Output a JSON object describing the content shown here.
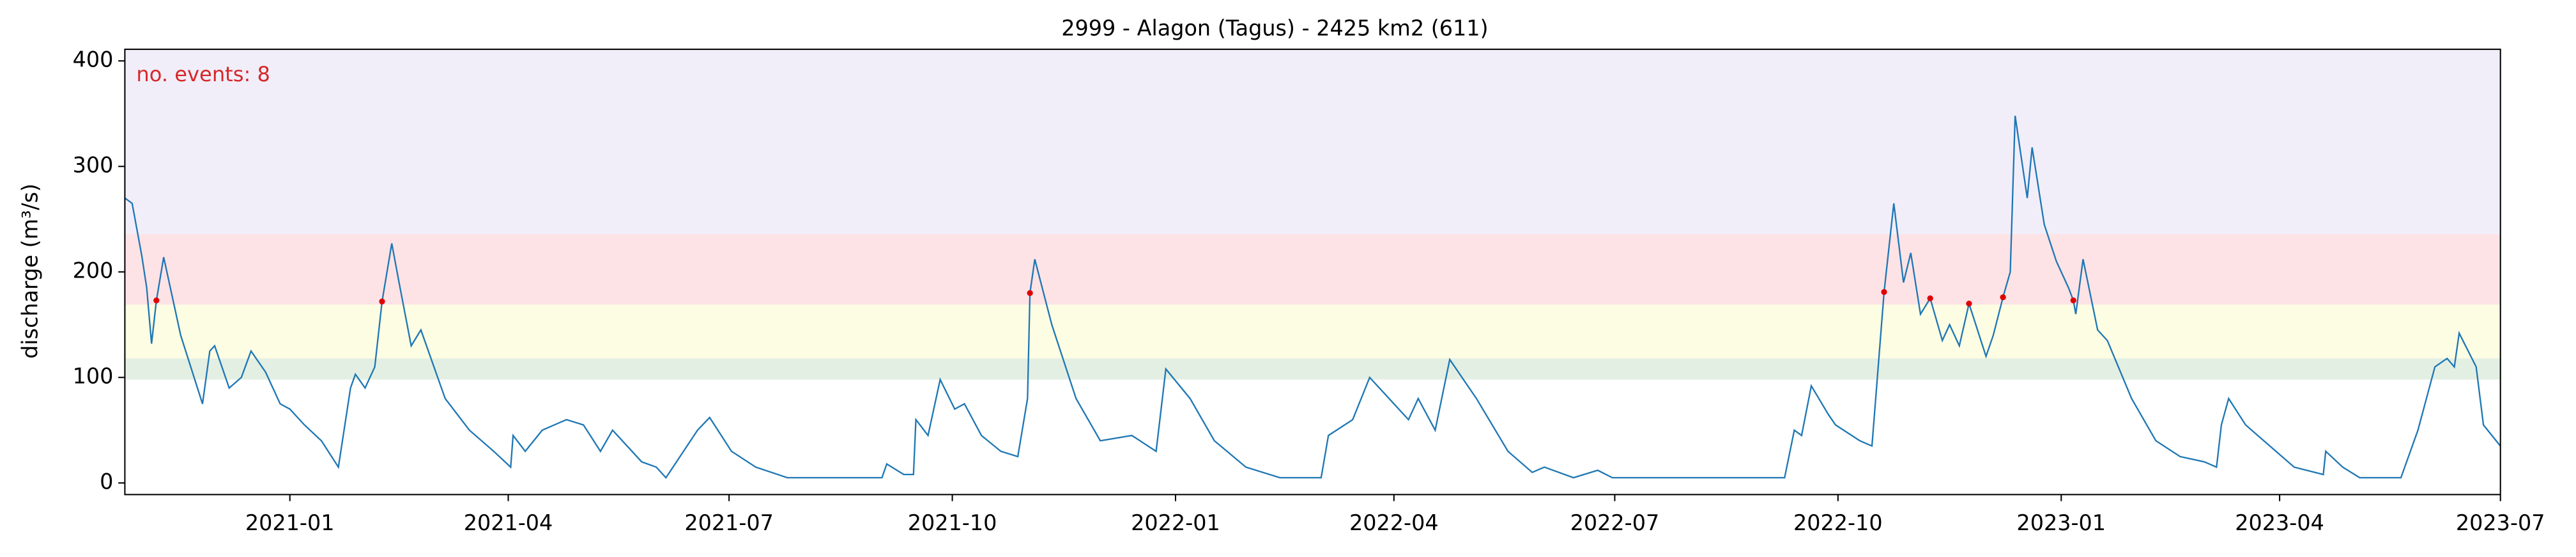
{
  "chart_data": {
    "type": "line",
    "title": "2999 - Alagon (Tagus) - 2425 km2 (611)",
    "ylabel": "discharge (m³/s)",
    "annotation": "no. events: 8",
    "annotation_color": "#d62728",
    "xlim": [
      "2020-10-25",
      "2023-07-01"
    ],
    "xticks": [
      "2021-01",
      "2021-04",
      "2021-07",
      "2021-10",
      "2022-01",
      "2022-04",
      "2022-07",
      "2022-10",
      "2023-01",
      "2023-04",
      "2023-07"
    ],
    "ylim": [
      -11,
      411
    ],
    "yticks": [
      0,
      100,
      200,
      300,
      400
    ],
    "bands": [
      {
        "from": 98,
        "to": 118,
        "color": "#e3efe3"
      },
      {
        "from": 118,
        "to": 169,
        "color": "#fdfde3"
      },
      {
        "from": 169,
        "to": 236,
        "color": "#fde3e6"
      },
      {
        "from": 236,
        "to": 411,
        "color": "#f1eefa"
      }
    ],
    "x": [
      "2020-10-25",
      "2020-10-28",
      "2020-11-01",
      "2020-11-03",
      "2020-11-05",
      "2020-11-07",
      "2020-11-10",
      "2020-11-17",
      "2020-11-26",
      "2020-11-29",
      "2020-12-01",
      "2020-12-07",
      "2020-12-12",
      "2020-12-16",
      "2020-12-22",
      "2020-12-28",
      "2021-01-01",
      "2021-01-07",
      "2021-01-14",
      "2021-01-21",
      "2021-01-26",
      "2021-01-28",
      "2021-02-01",
      "2021-02-05",
      "2021-02-08",
      "2021-02-12",
      "2021-02-15",
      "2021-02-20",
      "2021-02-24",
      "2021-03-06",
      "2021-03-16",
      "2021-03-26",
      "2021-04-02",
      "2021-04-03",
      "2021-04-08",
      "2021-04-15",
      "2021-04-25",
      "2021-05-02",
      "2021-05-09",
      "2021-05-14",
      "2021-05-26",
      "2021-06-01",
      "2021-06-05",
      "2021-06-18",
      "2021-06-23",
      "2021-07-02",
      "2021-07-12",
      "2021-07-25",
      "2021-09-02",
      "2021-09-04",
      "2021-09-11",
      "2021-09-15",
      "2021-09-16",
      "2021-09-21",
      "2021-09-26",
      "2021-10-02",
      "2021-10-06",
      "2021-10-13",
      "2021-10-21",
      "2021-10-28",
      "2021-11-01",
      "2021-11-02",
      "2021-11-04",
      "2021-11-11",
      "2021-11-21",
      "2021-12-01",
      "2021-12-14",
      "2021-12-24",
      "2021-12-28",
      "2022-01-07",
      "2022-01-17",
      "2022-01-30",
      "2022-02-13",
      "2022-03-02",
      "2022-03-05",
      "2022-03-15",
      "2022-03-22",
      "2022-03-30",
      "2022-04-07",
      "2022-04-11",
      "2022-04-18",
      "2022-04-24",
      "2022-05-05",
      "2022-05-18",
      "2022-05-28",
      "2022-06-02",
      "2022-06-14",
      "2022-06-24",
      "2022-06-30",
      "2022-09-09",
      "2022-09-13",
      "2022-09-16",
      "2022-09-20",
      "2022-09-27",
      "2022-09-30",
      "2022-10-10",
      "2022-10-15",
      "2022-10-20",
      "2022-10-24",
      "2022-10-28",
      "2022-10-31",
      "2022-11-04",
      "2022-11-08",
      "2022-11-13",
      "2022-11-16",
      "2022-11-20",
      "2022-11-24",
      "2022-12-01",
      "2022-12-04",
      "2022-12-08",
      "2022-12-11",
      "2022-12-13",
      "2022-12-18",
      "2022-12-20",
      "2022-12-25",
      "2022-12-30",
      "2023-01-04",
      "2023-01-06",
      "2023-01-07",
      "2023-01-10",
      "2023-01-16",
      "2023-01-20",
      "2023-01-30",
      "2023-02-09",
      "2023-02-19",
      "2023-03-01",
      "2023-03-06",
      "2023-03-08",
      "2023-03-11",
      "2023-03-18",
      "2023-03-28",
      "2023-04-07",
      "2023-04-19",
      "2023-04-20",
      "2023-04-27",
      "2023-05-04",
      "2023-05-21",
      "2023-05-28",
      "2023-06-04",
      "2023-06-09",
      "2023-06-12",
      "2023-06-14",
      "2023-06-21",
      "2023-06-24",
      "2023-07-01"
    ],
    "series": [
      {
        "color": "#1f77b4",
        "values": [
          270,
          265,
          215,
          185,
          132,
          173,
          214,
          140,
          75,
          125,
          130,
          90,
          100,
          125,
          105,
          75,
          70,
          55,
          40,
          15,
          90,
          103,
          90,
          110,
          172,
          227,
          190,
          130,
          145,
          80,
          50,
          30,
          15,
          45,
          30,
          50,
          60,
          55,
          30,
          50,
          20,
          15,
          5,
          50,
          62,
          30,
          15,
          5,
          5,
          18,
          8,
          8,
          60,
          45,
          98,
          70,
          75,
          45,
          30,
          25,
          80,
          180,
          212,
          150,
          80,
          40,
          45,
          30,
          108,
          80,
          40,
          15,
          5,
          5,
          45,
          60,
          100,
          80,
          60,
          80,
          50,
          117,
          80,
          30,
          10,
          15,
          5,
          12,
          5,
          5,
          50,
          45,
          92,
          65,
          55,
          40,
          35,
          181,
          265,
          190,
          218,
          160,
          175,
          135,
          150,
          130,
          170,
          120,
          140,
          176,
          200,
          348,
          270,
          318,
          245,
          210,
          185,
          173,
          160,
          212,
          145,
          135,
          80,
          40,
          25,
          20,
          15,
          55,
          80,
          55,
          35,
          15,
          8,
          30,
          15,
          5,
          5,
          50,
          110,
          118,
          110,
          142,
          110,
          55,
          35
        ]
      }
    ],
    "events": {
      "color": "#e00000",
      "x": [
        "2020-11-07",
        "2021-02-08",
        "2021-11-02",
        "2022-10-20",
        "2022-11-08",
        "2022-11-24",
        "2022-12-08",
        "2023-01-06"
      ],
      "values": [
        173,
        172,
        180,
        181,
        175,
        170,
        176,
        173
      ]
    }
  }
}
